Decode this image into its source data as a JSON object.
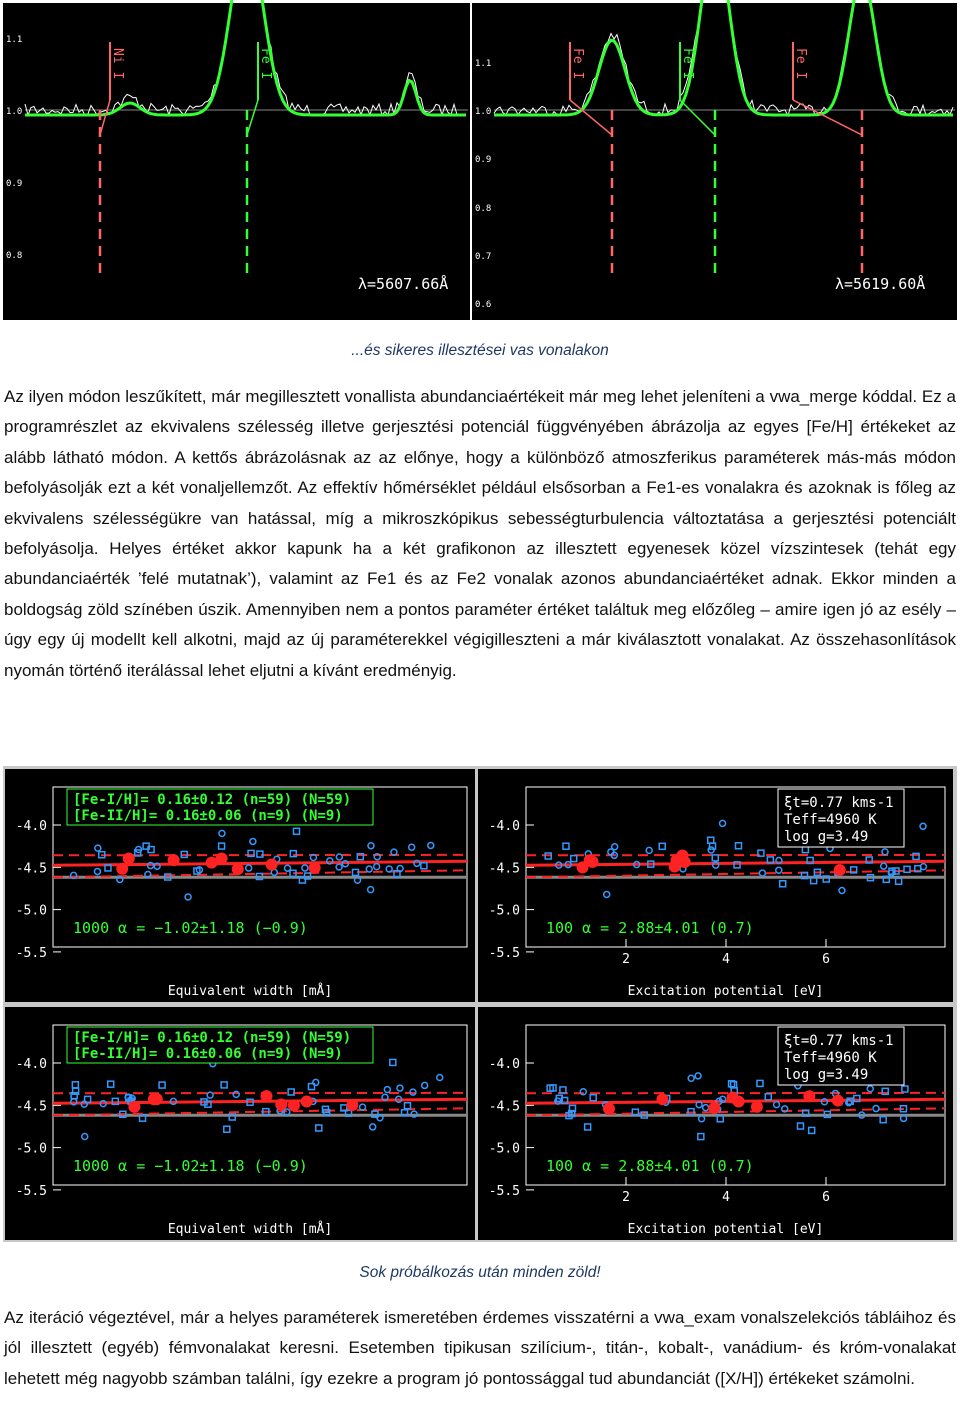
{
  "figure1": {
    "left": {
      "line_labels": [
        "Ni I",
        "Fe I"
      ],
      "yticks": [
        "1.1",
        "1.0",
        "0.9",
        "0.8"
      ],
      "wavelength": "λ=5607.66Å"
    },
    "right": {
      "line_labels": [
        "Fe I",
        "Fe I",
        "Fe I"
      ],
      "yticks": [
        "1.1",
        "1.0",
        "0.9",
        "0.8",
        "0.7",
        "0.6"
      ],
      "wavelength": "λ=5619.60Å"
    }
  },
  "caption1": "...és sikeres illesztései vas vonalakon",
  "paragraph1": "Az ilyen módon leszűkített, már megillesztett vonallista abundanciaértékeit már meg lehet jeleníteni a vwa_merge kóddal. Ez a programrészlet az ekvivalens szélesség illetve gerjesztési potenciál függvényében ábrázolja az egyes [Fe/H] értékeket az alább látható módon. A kettős ábrázolásnak az az előnye, hogy a különböző atmoszferikus paraméterek más-más módon befolyásolják ezt a két vonaljellemzőt. Az effektív hőmérséklet például elsősorban a Fe1-es vonalakra és azoknak is főleg az ekvivalens szélességükre van hatással, míg a mikroszkópikus sebességturbulencia változtatása a gerjesztési potenciált befolyásolja. Helyes értéket akkor kapunk ha a két grafikonon az illesztett egyenesek közel vízszintesek (tehát egy abundanciaérték ’felé mutatnak’), valamint az Fe1 és az Fe2 vonalak azonos abundanciaértéket adnak. Ekkor minden a boldogság zöld színében úszik. Amennyiben nem a pontos paraméter értéket találtuk meg előzőleg – amire igen jó az esély – úgy egy új modellt kell alkotni, majd az új paraméterekkel végigilleszteni a már kiválasztott vonalakat. Az összehasonlítások nyomán történő iterálással lehet eljutni a kívánt eredményig.",
  "figure2": {
    "panels": [
      {
        "yticks": [
          "-4.0",
          "-4.5",
          "-5.0",
          "-5.5"
        ],
        "box": [
          "[Fe-I/H]= 0.16±0.12 (n=59) (N=59)",
          "[Fe-II/H]= 0.16±0.06 (n=9) (N=9)"
        ],
        "alpha": "1000 α = −1.02±1.18 (−0.9)",
        "xlabel": "Equivalent width [mÅ]"
      },
      {
        "yticks": [
          "-4.0",
          "-4.5",
          "-5.0",
          "-5.5"
        ],
        "xticks": [
          "2",
          "4",
          "6"
        ],
        "params": [
          "ξt=0.77 kms-1",
          "Teff=4960 K",
          "log g=3.49"
        ],
        "alpha": "100 α = 2.88±4.01 (0.7)",
        "xlabel": "Excitation potential [eV]"
      },
      {
        "yticks": [
          "-4.0",
          "-4.5",
          "-5.0",
          "-5.5"
        ],
        "box": [
          "[Fe-I/H]= 0.16±0.12 (n=59) (N=59)",
          "[Fe-II/H]= 0.16±0.06 (n=9) (N=9)"
        ],
        "alpha": "1000 α = −1.02±1.18 (−0.9)",
        "xlabel": "Equivalent width [mÅ]"
      },
      {
        "yticks": [
          "-4.0",
          "-4.5",
          "-5.0",
          "-5.5"
        ],
        "xticks": [
          "2",
          "4",
          "6"
        ],
        "params": [
          "ξt=0.77 kms-1",
          "Teff=4960 K",
          "log g=3.49"
        ],
        "alpha": "100 α = 2.88±4.01 (0.7)",
        "xlabel": "Excitation potential [eV]"
      }
    ]
  },
  "caption2": "Sok próbálkozás után minden zöld!",
  "paragraph2": "Az iteráció végeztével, már a helyes paraméterek ismeretében érdemes visszatérni a vwa_exam vonalszelekciós tábláihoz és jól illesztett (egyéb) fémvonalakat keresni. Esetemben tipikusan szilícium-, titán-, kobalt-, vanádium- és króm-vonalakat lehetett még nagyobb számban találni, így ezekre a program jó pontossággal tud abundanciát ([X/H]) értékeket számolni."
}
